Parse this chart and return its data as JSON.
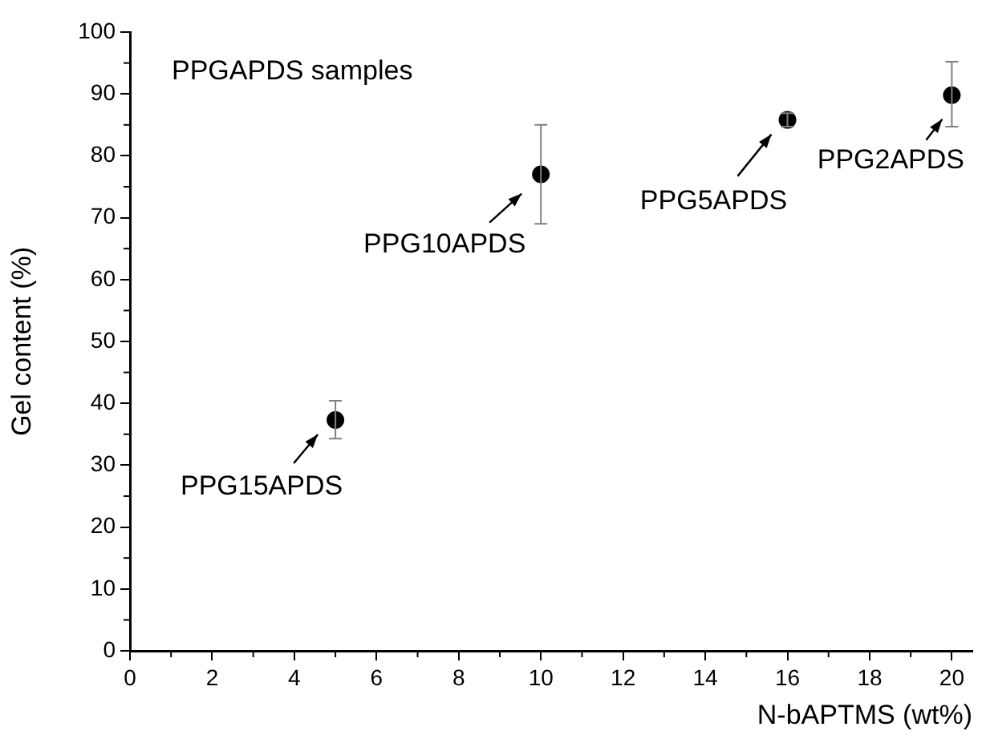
{
  "chart_data": {
    "type": "scatter",
    "xlabel": "N-bAPTMS (wt%)",
    "ylabel": "Gel content (%)",
    "x": [
      5,
      10,
      16,
      20
    ],
    "values": [
      37.3,
      77,
      85.8,
      89.8
    ],
    "errors": [
      [
        34.3,
        40.4
      ],
      [
        69,
        85
      ],
      [
        84.7,
        86.9
      ],
      [
        84.7,
        95.2
      ]
    ],
    "color": "#000000",
    "marker": "circle",
    "grid": false,
    "legend": false,
    "xlim": [
      0,
      20.5
    ],
    "xticks": [
      0,
      2,
      4,
      6,
      8,
      10,
      12,
      14,
      16,
      18,
      20
    ],
    "ylim": [
      0,
      100
    ],
    "yticks": [
      0,
      10,
      20,
      30,
      40,
      50,
      60,
      70,
      80,
      90,
      100
    ],
    "annotations": [
      "PPGAPDS samples",
      {
        "text": "PPG15APDS",
        "x": 5,
        "y": 37.3
      },
      {
        "text": "PPG10APDS",
        "x": 10,
        "y": 77
      },
      {
        "text": "PPG5APDS",
        "x": 16,
        "y": 85.8
      },
      {
        "text": "PPG2APDS",
        "x": 20,
        "y": 89.8
      }
    ]
  }
}
